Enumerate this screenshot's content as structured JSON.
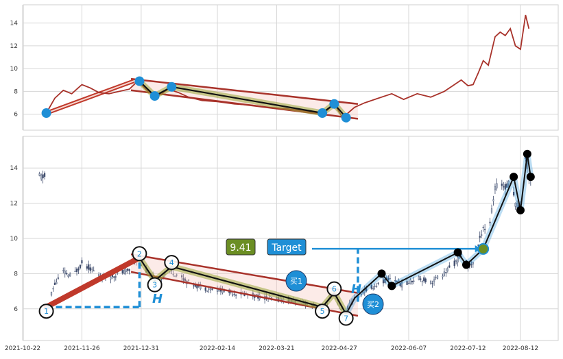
{
  "chart_data": [
    {
      "type": "line",
      "panel": "overview",
      "y_ticks": [
        6,
        8,
        10,
        12,
        14
      ],
      "ylim": [
        4.6,
        15.6
      ],
      "grid": true,
      "price_series": [
        {
          "date": "2021-11-05",
          "value": 6.1
        },
        {
          "date": "2021-11-10",
          "value": 7.4
        },
        {
          "date": "2021-11-15",
          "value": 8.1
        },
        {
          "date": "2021-11-20",
          "value": 7.8
        },
        {
          "date": "2021-11-26",
          "value": 8.6
        },
        {
          "date": "2021-12-01",
          "value": 8.3
        },
        {
          "date": "2021-12-06",
          "value": 7.9
        },
        {
          "date": "2021-12-12",
          "value": 7.8
        },
        {
          "date": "2021-12-18",
          "value": 8.0
        },
        {
          "date": "2021-12-24",
          "value": 8.2
        },
        {
          "date": "2021-12-29",
          "value": 8.9
        },
        {
          "date": "2022-01-04",
          "value": 8.0
        },
        {
          "date": "2022-01-10",
          "value": 7.6
        },
        {
          "date": "2022-01-16",
          "value": 8.2
        },
        {
          "date": "2022-01-22",
          "value": 7.9
        },
        {
          "date": "2022-01-28",
          "value": 7.5
        },
        {
          "date": "2022-02-05",
          "value": 7.2
        },
        {
          "date": "2022-02-14",
          "value": 7.1
        },
        {
          "date": "2022-02-24",
          "value": 6.9
        },
        {
          "date": "2022-03-06",
          "value": 6.8
        },
        {
          "date": "2022-03-16",
          "value": 6.6
        },
        {
          "date": "2022-03-26",
          "value": 6.5
        },
        {
          "date": "2022-04-06",
          "value": 6.3
        },
        {
          "date": "2022-04-18",
          "value": 6.1
        },
        {
          "date": "2022-04-24",
          "value": 6.9
        },
        {
          "date": "2022-04-29",
          "value": 5.7
        },
        {
          "date": "2022-05-06",
          "value": 6.6
        },
        {
          "date": "2022-05-12",
          "value": 7.0
        },
        {
          "date": "2022-05-20",
          "value": 7.4
        },
        {
          "date": "2022-05-28",
          "value": 7.8
        },
        {
          "date": "2022-06-04",
          "value": 7.3
        },
        {
          "date": "2022-06-12",
          "value": 7.8
        },
        {
          "date": "2022-06-20",
          "value": 7.5
        },
        {
          "date": "2022-06-28",
          "value": 8.0
        },
        {
          "date": "2022-07-04",
          "value": 8.6
        },
        {
          "date": "2022-07-08",
          "value": 9.0
        },
        {
          "date": "2022-07-12",
          "value": 8.5
        },
        {
          "date": "2022-07-15",
          "value": 8.6
        },
        {
          "date": "2022-07-18",
          "value": 9.6
        },
        {
          "date": "2022-07-21",
          "value": 10.7
        },
        {
          "date": "2022-07-24",
          "value": 10.3
        },
        {
          "date": "2022-07-28",
          "value": 12.8
        },
        {
          "date": "2022-07-31",
          "value": 13.2
        },
        {
          "date": "2022-08-03",
          "value": 12.9
        },
        {
          "date": "2022-08-06",
          "value": 13.5
        },
        {
          "date": "2022-08-09",
          "value": 12.0
        },
        {
          "date": "2022-08-12",
          "value": 11.7
        },
        {
          "date": "2022-08-15",
          "value": 14.7
        },
        {
          "date": "2022-08-17",
          "value": 13.5
        }
      ],
      "pattern_points": [
        {
          "date": "2021-11-05",
          "value": 6.1
        },
        {
          "date": "2021-12-30",
          "value": 8.9
        },
        {
          "date": "2022-01-08",
          "value": 7.6
        },
        {
          "date": "2022-01-18",
          "value": 8.4
        },
        {
          "date": "2022-04-17",
          "value": 6.1
        },
        {
          "date": "2022-04-24",
          "value": 6.9
        },
        {
          "date": "2022-05-01",
          "value": 5.7
        }
      ]
    },
    {
      "type": "candlestick",
      "panel": "pattern",
      "x_ticks": [
        "2021-10-22",
        "2021-11-26",
        "2021-12-31",
        "2022-02-14",
        "2022-03-21",
        "2022-04-27",
        "2022-06-07",
        "2022-07-12",
        "2022-08-12"
      ],
      "y_ticks": [
        6,
        8,
        10,
        12,
        14
      ],
      "ylim": [
        4.2,
        15.8
      ],
      "grid": true,
      "pattern_points": [
        {
          "label": "1",
          "date": "2021-11-05",
          "value": 6.1
        },
        {
          "label": "2",
          "date": "2021-12-30",
          "value": 8.9
        },
        {
          "label": "3",
          "date": "2022-01-08",
          "value": 7.6
        },
        {
          "label": "4",
          "date": "2022-01-18",
          "value": 8.4
        },
        {
          "label": "5",
          "date": "2022-04-17",
          "value": 6.1
        },
        {
          "label": "6",
          "date": "2022-04-24",
          "value": 6.9
        },
        {
          "label": "7",
          "date": "2022-05-01",
          "value": 5.7
        }
      ],
      "trend_points": [
        {
          "date": "2022-05-06",
          "value": 6.6
        },
        {
          "date": "2022-05-22",
          "value": 8.0
        },
        {
          "date": "2022-05-28",
          "value": 7.3
        },
        {
          "date": "2022-07-06",
          "value": 9.2
        },
        {
          "date": "2022-07-11",
          "value": 8.5
        },
        {
          "date": "2022-07-21",
          "value": 9.4
        },
        {
          "date": "2022-08-08",
          "value": 13.5
        },
        {
          "date": "2022-08-12",
          "value": 11.6
        },
        {
          "date": "2022-08-16",
          "value": 14.8
        },
        {
          "date": "2022-08-18",
          "value": 13.5
        }
      ],
      "annotations": {
        "target_label": "Target",
        "target_value_label": "9.41",
        "target_value": 9.41,
        "h_label_1": "H",
        "h_label_2": "H",
        "buy_1": "买1",
        "buy_2": "买2"
      }
    }
  ]
}
